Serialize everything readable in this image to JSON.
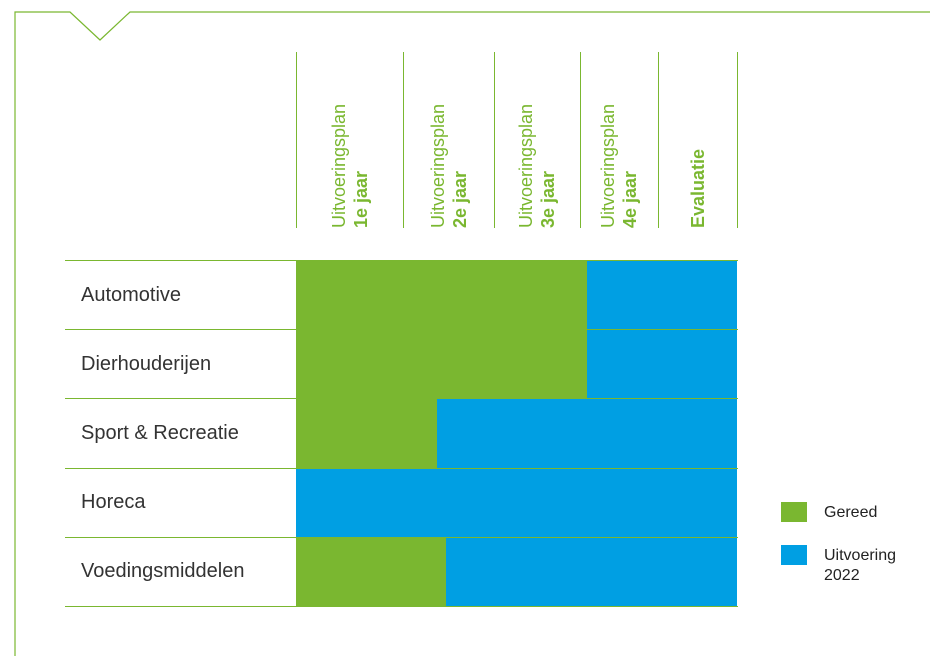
{
  "colors": {
    "green": "#7ab730",
    "blue": "#009fe3",
    "line": "#7ab730"
  },
  "chart_data": {
    "type": "bar",
    "orientation": "horizontal",
    "stacked": true,
    "columns": [
      {
        "line1": "Uitvoeringsplan",
        "line2": "1e jaar"
      },
      {
        "line1": "Uitvoeringsplan",
        "line2": "2e jaar"
      },
      {
        "line1": "Uitvoeringsplan",
        "line2": "3e jaar"
      },
      {
        "line1": "Uitvoeringsplan",
        "line2": "4e jaar"
      },
      {
        "line1": "",
        "line2": "Evaluatie"
      }
    ],
    "categories": [
      "Automotive",
      "Dierhouderijen",
      "Sport & Recreatie",
      "Horeca",
      "Voedingsmiddelen"
    ],
    "series": [
      {
        "name": "Gereed",
        "color": "#7ab730",
        "values": [
          3.3,
          3.3,
          1.6,
          0,
          1.7
        ]
      },
      {
        "name": "Uitvoering 2022",
        "color": "#009fe3",
        "values": [
          1.7,
          1.7,
          3.4,
          5,
          3.3
        ]
      }
    ],
    "xlim": [
      0,
      5
    ],
    "legend": {
      "position": "right",
      "items": [
        {
          "label_line1": "Gereed",
          "label_line2": "",
          "color": "#7ab730"
        },
        {
          "label_line1": "Uitvoering",
          "label_line2": "2022",
          "color": "#009fe3"
        }
      ]
    }
  }
}
